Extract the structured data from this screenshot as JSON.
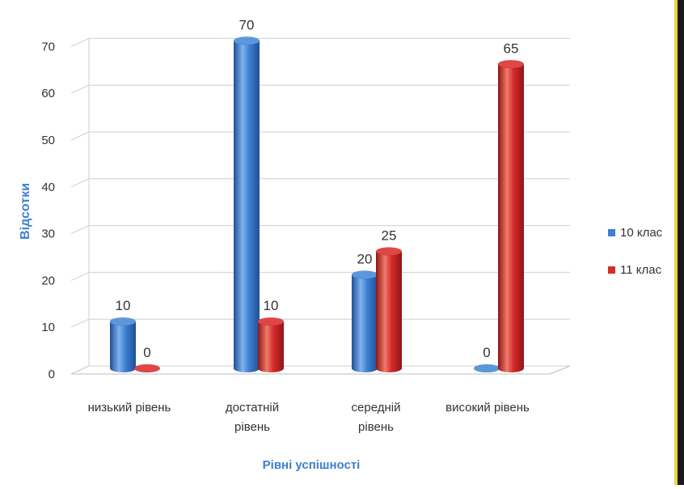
{
  "chart_data": {
    "type": "bar",
    "categories": [
      "низький рівень",
      "достатній рівень",
      "середній рівень",
      "високий рівень"
    ],
    "series": [
      {
        "name": "10 клас",
        "values": [
          10,
          70,
          20,
          0
        ],
        "color": "#3d7fd0"
      },
      {
        "name": "11 клас",
        "values": [
          0,
          10,
          25,
          65
        ],
        "color": "#d42b2b"
      }
    ],
    "xlabel": "Рівні успішності",
    "ylabel": "Відсотки",
    "ylim": [
      0,
      70
    ],
    "yticks": [
      0,
      10,
      20,
      30,
      40,
      50,
      60,
      70
    ],
    "grid": true,
    "legend_position": "right"
  },
  "labels": {
    "cat0": "низький рівень",
    "cat1_line1": "достатній",
    "cat1_line2": "рівень",
    "cat2_line1": "середній",
    "cat2_line2": "рівень",
    "cat3": "високий рівень"
  }
}
